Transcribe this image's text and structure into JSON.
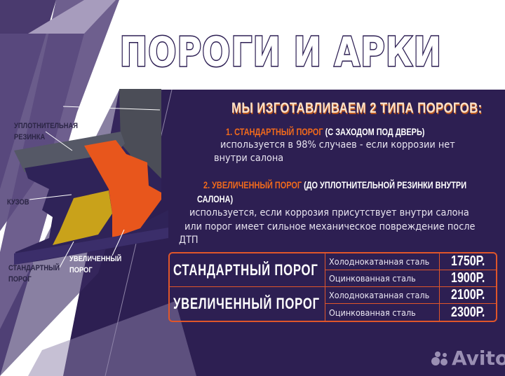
{
  "title": "ПОРОГИ И АРКИ",
  "heading": "МЫ ИЗГОТАВЛИВАЕМ 2 ТИПА ПОРОГОВ:",
  "types": [
    {
      "name": "1. СТАНДАРТНЫЙ ПОРОГ",
      "note": "(С ЗАХОДОМ ПОД ДВЕРЬ)",
      "desc_lines": [
        "используется в 98% случаев - если коррозии нет",
        "внутри салона"
      ]
    },
    {
      "name": "2. УВЕЛИЧЕННЫЙ ПОРОГ",
      "note": "(ДО УПЛОТНИТЕЛЬНОЙ РЕЗИНКИ ВНУТРИ",
      "note2": "САЛОНА)",
      "desc_lines": [
        "используется, если коррозия присутствует внутри салона",
        "или порог имеет сильное механическое повреждение после",
        "ДТП"
      ]
    }
  ],
  "diagram_labels": {
    "door": "ДВЕРЬ",
    "seal_1": "УПЛОТНИТЕЛЬНАЯ",
    "seal_2": "РЕЗИНКА",
    "body": "КУЗОВ",
    "standard_1": "СТАНДАРТНЫЙ",
    "standard_2": "ПОРОГ",
    "enlarged_1": "УВЕЛИЧЕННЫЙ",
    "enlarged_2": "ПОРОГ"
  },
  "price_table": [
    {
      "type": "СТАНДАРТНЫЙ ПОРОГ",
      "rows": [
        {
          "material": "Холоднокатанная сталь",
          "price": "1750Р."
        },
        {
          "material": "Оцинкованная сталь",
          "price": "1900Р."
        }
      ]
    },
    {
      "type": "УВЕЛИЧЕННЫЙ ПОРОГ",
      "rows": [
        {
          "material": "Холоднокатанная сталь",
          "price": "2100Р."
        },
        {
          "material": "Оцинкованная сталь",
          "price": "2300Р."
        }
      ]
    }
  ],
  "watermark": "Avito",
  "colors": {
    "panel": "#2d1f52",
    "accent": "#f26a1b",
    "standard": "#c9a21a",
    "enlarged": "#e8561c"
  }
}
